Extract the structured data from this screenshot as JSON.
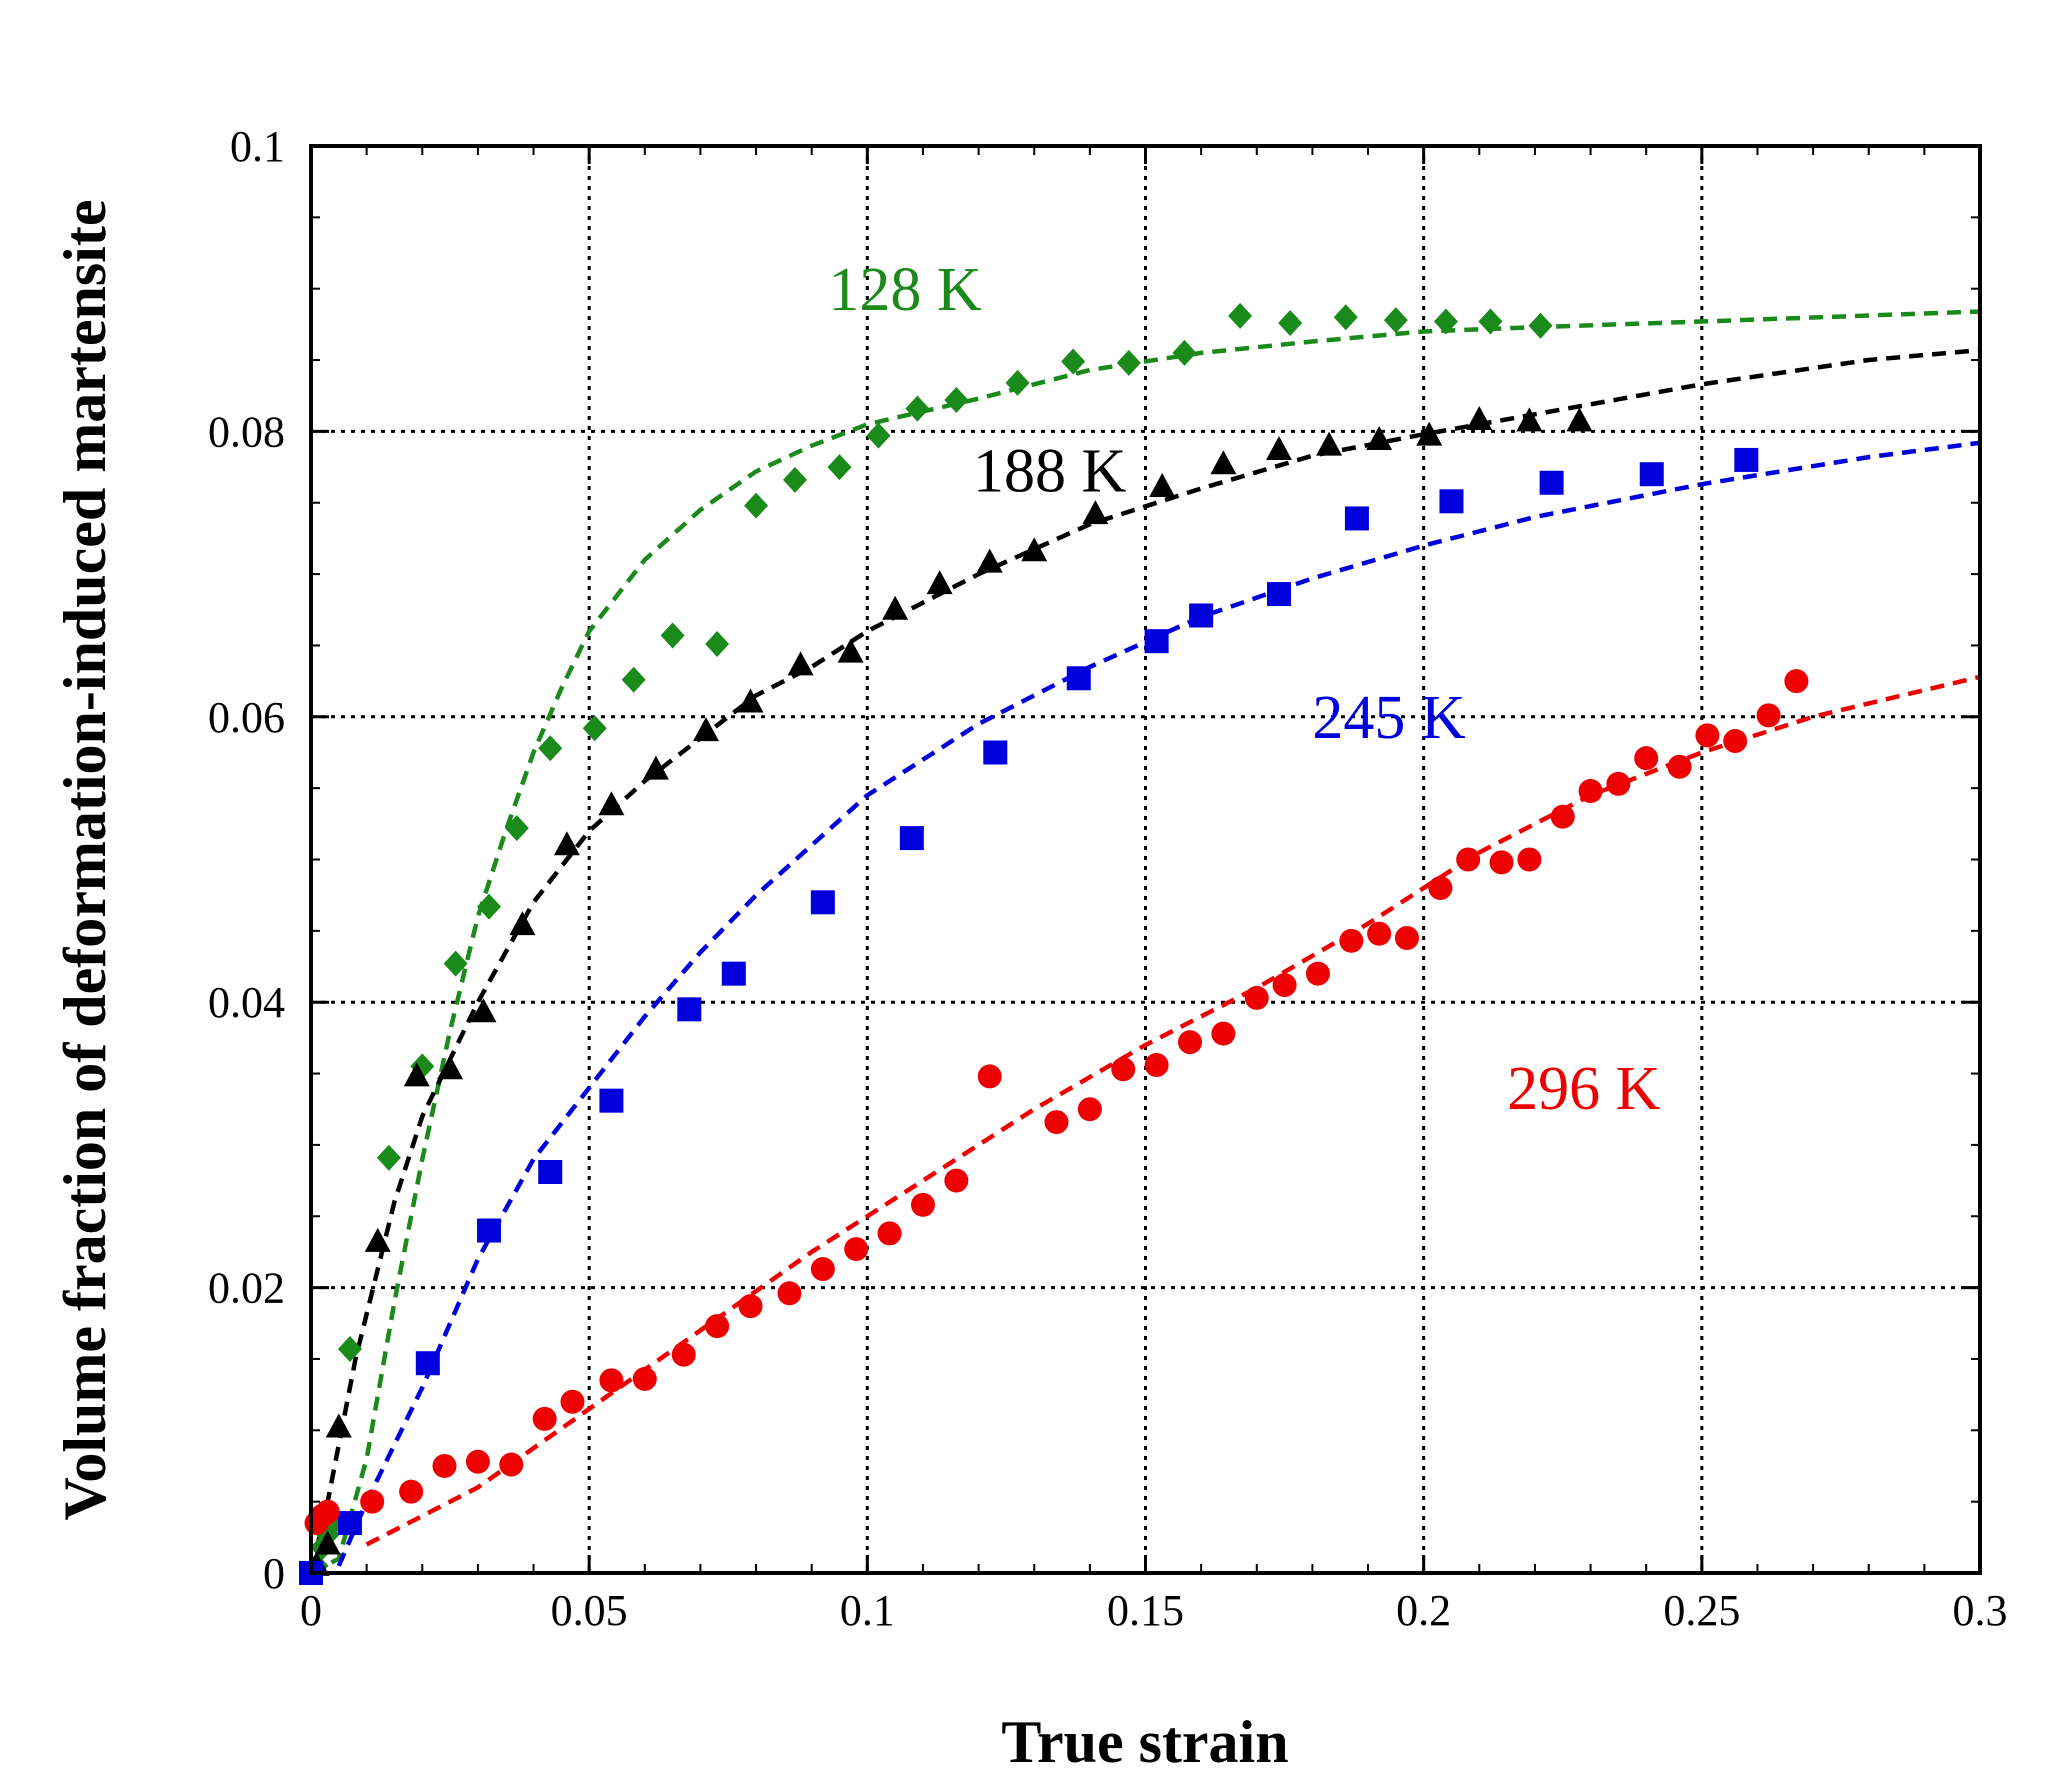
{
  "chart_data": {
    "type": "scatter",
    "title": "",
    "xlabel": "True strain",
    "ylabel": "Volume fraction of deformation-induced martensite",
    "xlim": [
      0,
      0.3
    ],
    "ylim": [
      0,
      0.1
    ],
    "xticks": [
      0,
      0.05,
      0.1,
      0.15,
      0.2,
      0.25,
      0.3
    ],
    "xtick_labels": [
      "0",
      "0.05",
      "0.1",
      "0.15",
      "0.2",
      "0.25",
      "0.3"
    ],
    "yticks": [
      0,
      0.02,
      0.04,
      0.06,
      0.08,
      0.1
    ],
    "ytick_labels": [
      "0",
      "0.02",
      "0.04",
      "0.06",
      "0.08",
      "0.1"
    ],
    "grid": true,
    "grid_style": "dotted",
    "series": [
      {
        "name": "128 K",
        "color": "#1a8a1a",
        "marker": "diamond",
        "points": [
          [
            0.001,
            0.0005
          ],
          [
            0.002,
            0.0018
          ],
          [
            0.003,
            0.0027
          ],
          [
            0.004,
            0.0035
          ],
          [
            0.007,
            0.0157
          ],
          [
            0.014,
            0.0291
          ],
          [
            0.02,
            0.0355
          ],
          [
            0.026,
            0.0427
          ],
          [
            0.032,
            0.0467
          ],
          [
            0.037,
            0.0522
          ],
          [
            0.043,
            0.0578
          ],
          [
            0.051,
            0.0592
          ],
          [
            0.058,
            0.0626
          ],
          [
            0.065,
            0.0657
          ],
          [
            0.073,
            0.0651
          ],
          [
            0.08,
            0.0748
          ],
          [
            0.087,
            0.0766
          ],
          [
            0.095,
            0.0775
          ],
          [
            0.102,
            0.0797
          ],
          [
            0.109,
            0.0816
          ],
          [
            0.116,
            0.0822
          ],
          [
            0.127,
            0.0834
          ],
          [
            0.137,
            0.0849
          ],
          [
            0.147,
            0.0848
          ],
          [
            0.157,
            0.0855
          ],
          [
            0.167,
            0.0881
          ],
          [
            0.176,
            0.0876
          ],
          [
            0.186,
            0.088
          ],
          [
            0.195,
            0.0878
          ],
          [
            0.204,
            0.0877
          ],
          [
            0.212,
            0.0877
          ],
          [
            0.221,
            0.0874
          ]
        ],
        "fit": [
          [
            0.0,
            0.0
          ],
          [
            0.005,
            0.001
          ],
          [
            0.01,
            0.008
          ],
          [
            0.015,
            0.019
          ],
          [
            0.02,
            0.029
          ],
          [
            0.025,
            0.038
          ],
          [
            0.03,
            0.046
          ],
          [
            0.035,
            0.052
          ],
          [
            0.04,
            0.0575
          ],
          [
            0.045,
            0.062
          ],
          [
            0.05,
            0.066
          ],
          [
            0.06,
            0.071
          ],
          [
            0.07,
            0.0745
          ],
          [
            0.08,
            0.0772
          ],
          [
            0.09,
            0.079
          ],
          [
            0.1,
            0.0805
          ],
          [
            0.12,
            0.0823
          ],
          [
            0.14,
            0.0843
          ],
          [
            0.16,
            0.0855
          ],
          [
            0.18,
            0.0863
          ],
          [
            0.2,
            0.087
          ],
          [
            0.22,
            0.0873
          ],
          [
            0.25,
            0.0877
          ],
          [
            0.3,
            0.0884
          ]
        ]
      },
      {
        "name": "188 K",
        "color": "#000000",
        "marker": "triangle",
        "points": [
          [
            0.001,
            0.0005
          ],
          [
            0.003,
            0.002
          ],
          [
            0.005,
            0.0102
          ],
          [
            0.012,
            0.0232
          ],
          [
            0.019,
            0.0348
          ],
          [
            0.025,
            0.0353
          ],
          [
            0.031,
            0.0393
          ],
          [
            0.038,
            0.0454
          ],
          [
            0.046,
            0.051
          ],
          [
            0.054,
            0.0538
          ],
          [
            0.062,
            0.0563
          ],
          [
            0.071,
            0.059
          ],
          [
            0.079,
            0.061
          ],
          [
            0.088,
            0.0636
          ],
          [
            0.097,
            0.0645
          ],
          [
            0.105,
            0.0675
          ],
          [
            0.113,
            0.0693
          ],
          [
            0.122,
            0.0708
          ],
          [
            0.13,
            0.0716
          ],
          [
            0.141,
            0.0742
          ],
          [
            0.153,
            0.0761
          ],
          [
            0.164,
            0.0777
          ],
          [
            0.174,
            0.0787
          ],
          [
            0.183,
            0.079
          ],
          [
            0.192,
            0.0794
          ],
          [
            0.201,
            0.0797
          ],
          [
            0.21,
            0.0808
          ],
          [
            0.219,
            0.0807
          ],
          [
            0.228,
            0.0807
          ]
        ],
        "fit": [
          [
            0.0,
            0.0
          ],
          [
            0.003,
            0.005
          ],
          [
            0.008,
            0.015
          ],
          [
            0.015,
            0.026
          ],
          [
            0.02,
            0.032
          ],
          [
            0.03,
            0.04
          ],
          [
            0.04,
            0.047
          ],
          [
            0.05,
            0.052
          ],
          [
            0.06,
            0.0555
          ],
          [
            0.07,
            0.0585
          ],
          [
            0.08,
            0.0615
          ],
          [
            0.09,
            0.0635
          ],
          [
            0.1,
            0.066
          ],
          [
            0.12,
            0.07
          ],
          [
            0.14,
            0.0735
          ],
          [
            0.16,
            0.076
          ],
          [
            0.18,
            0.0783
          ],
          [
            0.2,
            0.0798
          ],
          [
            0.22,
            0.0812
          ],
          [
            0.25,
            0.0833
          ],
          [
            0.28,
            0.085
          ],
          [
            0.3,
            0.0857
          ]
        ]
      },
      {
        "name": "245 K",
        "color": "#0000dd",
        "marker": "square",
        "points": [
          [
            0.0,
            0.0
          ],
          [
            0.007,
            0.0035
          ],
          [
            0.021,
            0.0147
          ],
          [
            0.032,
            0.024
          ],
          [
            0.043,
            0.0281
          ],
          [
            0.054,
            0.0331
          ],
          [
            0.068,
            0.0395
          ],
          [
            0.076,
            0.042
          ],
          [
            0.092,
            0.047
          ],
          [
            0.108,
            0.0515
          ],
          [
            0.123,
            0.0575
          ],
          [
            0.138,
            0.0627
          ],
          [
            0.152,
            0.0653
          ],
          [
            0.16,
            0.0671
          ],
          [
            0.174,
            0.0686
          ],
          [
            0.188,
            0.0739
          ],
          [
            0.205,
            0.0751
          ],
          [
            0.223,
            0.0764
          ],
          [
            0.241,
            0.077
          ],
          [
            0.258,
            0.078
          ]
        ],
        "fit": [
          [
            0.005,
            0.0005
          ],
          [
            0.01,
            0.005
          ],
          [
            0.02,
            0.013
          ],
          [
            0.03,
            0.022
          ],
          [
            0.04,
            0.029
          ],
          [
            0.05,
            0.034
          ],
          [
            0.06,
            0.039
          ],
          [
            0.07,
            0.0435
          ],
          [
            0.08,
            0.0475
          ],
          [
            0.09,
            0.051
          ],
          [
            0.1,
            0.0545
          ],
          [
            0.12,
            0.0595
          ],
          [
            0.14,
            0.0635
          ],
          [
            0.16,
            0.067
          ],
          [
            0.18,
            0.0697
          ],
          [
            0.2,
            0.072
          ],
          [
            0.22,
            0.074
          ],
          [
            0.25,
            0.0763
          ],
          [
            0.28,
            0.0782
          ],
          [
            0.3,
            0.0792
          ]
        ]
      },
      {
        "name": "296 K",
        "color": "#ee0000",
        "marker": "circle",
        "points": [
          [
            0.001,
            0.0035
          ],
          [
            0.002,
            0.004
          ],
          [
            0.003,
            0.0043
          ],
          [
            0.011,
            0.005
          ],
          [
            0.018,
            0.0057
          ],
          [
            0.024,
            0.0075
          ],
          [
            0.03,
            0.0078
          ],
          [
            0.036,
            0.0076
          ],
          [
            0.042,
            0.0108
          ],
          [
            0.047,
            0.012
          ],
          [
            0.054,
            0.0135
          ],
          [
            0.06,
            0.0136
          ],
          [
            0.067,
            0.0153
          ],
          [
            0.073,
            0.0173
          ],
          [
            0.079,
            0.0187
          ],
          [
            0.086,
            0.0196
          ],
          [
            0.092,
            0.0213
          ],
          [
            0.098,
            0.0227
          ],
          [
            0.104,
            0.0238
          ],
          [
            0.11,
            0.0258
          ],
          [
            0.116,
            0.0275
          ],
          [
            0.122,
            0.0348
          ],
          [
            0.134,
            0.0316
          ],
          [
            0.14,
            0.0325
          ],
          [
            0.146,
            0.0353
          ],
          [
            0.152,
            0.0356
          ],
          [
            0.158,
            0.0372
          ],
          [
            0.164,
            0.0378
          ],
          [
            0.17,
            0.0403
          ],
          [
            0.175,
            0.0412
          ],
          [
            0.181,
            0.042
          ],
          [
            0.187,
            0.0443
          ],
          [
            0.192,
            0.0448
          ],
          [
            0.197,
            0.0445
          ],
          [
            0.203,
            0.048
          ],
          [
            0.208,
            0.05
          ],
          [
            0.214,
            0.0498
          ],
          [
            0.219,
            0.05
          ],
          [
            0.225,
            0.053
          ],
          [
            0.23,
            0.0548
          ],
          [
            0.235,
            0.0553
          ],
          [
            0.24,
            0.0571
          ],
          [
            0.246,
            0.0565
          ],
          [
            0.251,
            0.0587
          ],
          [
            0.256,
            0.0583
          ],
          [
            0.262,
            0.0601
          ],
          [
            0.267,
            0.0625
          ]
        ],
        "fit": [
          [
            0.01,
            0.002
          ],
          [
            0.03,
            0.006
          ],
          [
            0.05,
            0.0115
          ],
          [
            0.07,
            0.017
          ],
          [
            0.09,
            0.0225
          ],
          [
            0.11,
            0.0275
          ],
          [
            0.13,
            0.0325
          ],
          [
            0.15,
            0.037
          ],
          [
            0.17,
            0.041
          ],
          [
            0.19,
            0.0455
          ],
          [
            0.21,
            0.0505
          ],
          [
            0.23,
            0.0545
          ],
          [
            0.25,
            0.0575
          ],
          [
            0.27,
            0.06
          ],
          [
            0.3,
            0.0628
          ]
        ]
      }
    ],
    "annotations": [
      {
        "text": "128 K",
        "x": 0.093,
        "y": 0.0885,
        "color": "#1a8a1a"
      },
      {
        "text": "188 K",
        "x": 0.119,
        "y": 0.0758,
        "color": "#000000"
      },
      {
        "text": "245 K",
        "x": 0.18,
        "y": 0.0585,
        "color": "#0000dd"
      },
      {
        "text": "296 K",
        "x": 0.215,
        "y": 0.0325,
        "color": "#ee0000"
      }
    ]
  }
}
